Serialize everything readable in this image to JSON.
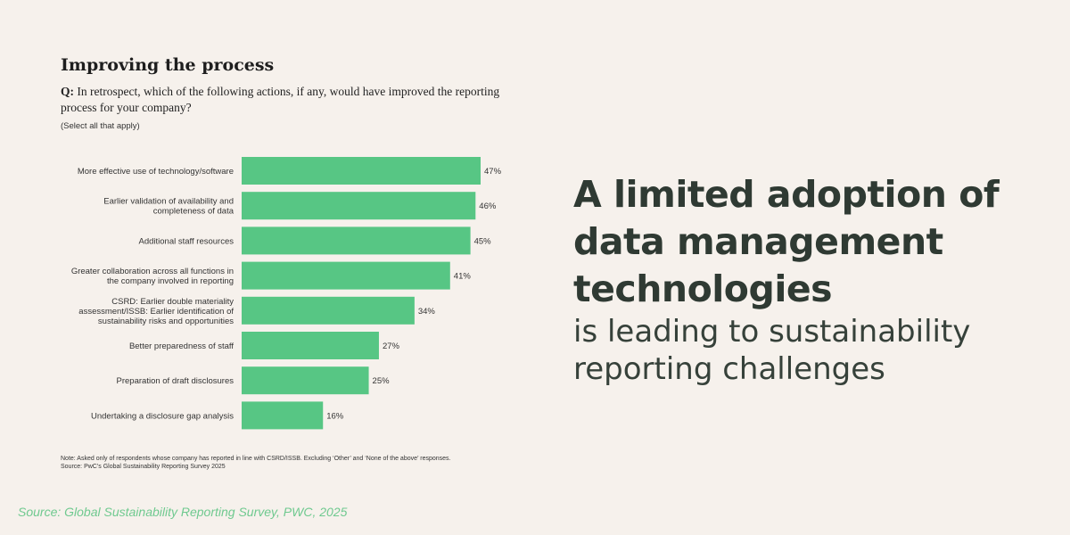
{
  "left_panel": {
    "title": "Improving the process",
    "question_prefix": "Q:",
    "question_text": " In retrospect, which of the following actions, if any, would have improved the reporting process for your company?",
    "instruction": "(Select all that apply)",
    "note_line1": "Note: Asked only of respondents whose company has reported in line with CSRD/ISSB. Excluding ‘Other’ and ‘None of the above’ responses.",
    "note_line2": "Source: PwC’s Global Sustainability Reporting Survey 2025"
  },
  "chart_data": {
    "type": "bar",
    "orientation": "horizontal",
    "categories": [
      [
        "More effective use of technology/software"
      ],
      [
        "Earlier validation of availability and",
        "completeness of data"
      ],
      [
        "Additional staff resources"
      ],
      [
        "Greater collaboration across all functions in",
        "the company involved in reporting"
      ],
      [
        "CSRD: Earlier double materiality",
        "assessment/ISSB: Earlier identification of",
        "sustainability risks and opportunities"
      ],
      [
        "Better preparedness of staff"
      ],
      [
        "Preparation of draft disclosures"
      ],
      [
        "Undertaking a disclosure gap analysis"
      ]
    ],
    "values": [
      47,
      46,
      45,
      41,
      34,
      27,
      25,
      16
    ],
    "value_labels": [
      "47%",
      "46%",
      "45%",
      "41%",
      "34%",
      "27%",
      "25%",
      "16%"
    ],
    "xlim": [
      0,
      47
    ],
    "bar_color": "#57c684",
    "grid": false,
    "axes_visible": false
  },
  "headline": {
    "bold_lines": [
      "A limited adoption of",
      "data management",
      "technologies"
    ],
    "light_lines": [
      "is leading to sustainability",
      "reporting challenges"
    ],
    "color": "#2f3a33"
  },
  "footer": {
    "source": "Source: Global Sustainability Reporting Survey, PWC, 2025",
    "color": "#6fc98f"
  }
}
